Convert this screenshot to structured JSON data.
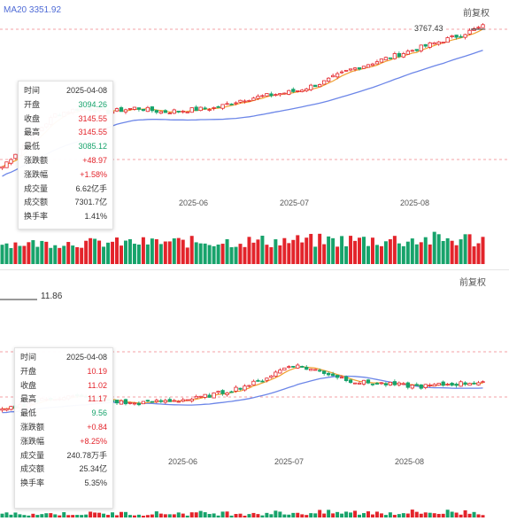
{
  "charts": {
    "top": {
      "ma_label": "MA20 3351.92",
      "adj_label": "前复权",
      "price_tag": "3767.43",
      "x_labels": [
        "2025-06",
        "2025-07",
        "2025-08"
      ]
    },
    "bottom": {
      "adj_label": "前复权",
      "low_tag": "11.86",
      "x_labels": [
        "2025-06",
        "2025-07",
        "2025-08"
      ]
    }
  },
  "tooltip_top": [
    {
      "k": "时间",
      "v": "2025-04-08",
      "cls": "v"
    },
    {
      "k": "开盘",
      "v": "3094.26",
      "cls": "down"
    },
    {
      "k": "收盘",
      "v": "3145.55",
      "cls": "up"
    },
    {
      "k": "最高",
      "v": "3145.55",
      "cls": "up"
    },
    {
      "k": "最低",
      "v": "3085.12",
      "cls": "down"
    },
    {
      "k": "涨跌额",
      "v": "+48.97",
      "cls": "up"
    },
    {
      "k": "涨跌幅",
      "v": "+1.58%",
      "cls": "up"
    },
    {
      "k": "成交量",
      "v": "6.62亿手",
      "cls": "v"
    },
    {
      "k": "成交额",
      "v": "7301.7亿",
      "cls": "v"
    },
    {
      "k": "换手率",
      "v": "1.41%",
      "cls": "v"
    }
  ],
  "tooltip_bottom": [
    {
      "k": "时间",
      "v": "2025-04-08",
      "cls": "v"
    },
    {
      "k": "开盘",
      "v": "10.19",
      "cls": "up"
    },
    {
      "k": "收盘",
      "v": "11.02",
      "cls": "up"
    },
    {
      "k": "最高",
      "v": "11.17",
      "cls": "up"
    },
    {
      "k": "最低",
      "v": "9.56",
      "cls": "down"
    },
    {
      "k": "涨跌额",
      "v": "+0.84",
      "cls": "up"
    },
    {
      "k": "涨跌幅",
      "v": "+8.25%",
      "cls": "up"
    },
    {
      "k": "成交量",
      "v": "240.78万手",
      "cls": "v"
    },
    {
      "k": "成交额",
      "v": "25.34亿",
      "cls": "v"
    },
    {
      "k": "换手率",
      "v": "5.35%",
      "cls": "v"
    }
  ],
  "chart_data": [
    {
      "type": "candlestick",
      "ma_label": "MA20 3351.92",
      "last_high": 3767.43,
      "x_ticks": [
        "2025-06",
        "2025-07",
        "2025-08"
      ],
      "close_path_estimate": [
        3100,
        3230,
        3350,
        3380,
        3360,
        3380,
        3360,
        3370,
        3380,
        3420,
        3440,
        3460,
        3500,
        3560,
        3600,
        3640,
        3680,
        3720,
        3767.43
      ],
      "ylim": [
        3050,
        3800
      ],
      "colors": {
        "up": "#e3242b",
        "down": "#17a36b",
        "ma5": "#f0a030",
        "ma20": "#6c86e8"
      }
    },
    {
      "type": "candlestick",
      "x_ticks": [
        "2025-06",
        "2025-07",
        "2025-08"
      ],
      "min_label": 11.86,
      "close_path_estimate": [
        11.0,
        11.4,
        11.6,
        11.5,
        11.3,
        11.4,
        11.5,
        11.8,
        12.2,
        12.9,
        12.6,
        12.2,
        12.1,
        12.0,
        12.1,
        12.2
      ],
      "ylim": [
        9.5,
        13.5
      ],
      "colors": {
        "up": "#e3242b",
        "down": "#17a36b",
        "ma5": "#f0a030",
        "ma20": "#6c86e8"
      }
    }
  ]
}
